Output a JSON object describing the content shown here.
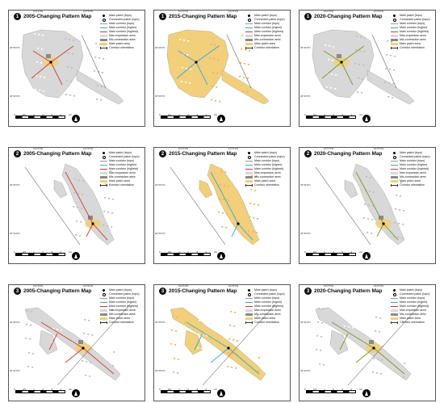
{
  "legend": [
    {
      "key": "main_patch",
      "label": "Main patch (topo)",
      "symbol": "dot"
    },
    {
      "key": "connected_patch",
      "label": "Connected patch (topo)",
      "symbol": "ring"
    },
    {
      "key": "main_corridor_topo",
      "label": "Main corridor (topo)",
      "symbol": "line",
      "color": "#9a9a9a"
    },
    {
      "key": "main_corridor_higher",
      "label": "Main corridor (higher)",
      "symbol": "line",
      "color": "#3aa6d6"
    },
    {
      "key": "main_corridor_highest",
      "label": "Main corridor (highest)",
      "symbol": "line",
      "color": "#d23b2d"
    },
    {
      "key": "max_expansion",
      "label": "Max-expansion area",
      "symbol": "box",
      "color": "#d8d8d8"
    },
    {
      "key": "mix_contraction",
      "label": "Mix-contraction area",
      "symbol": "box",
      "color": "#8a8a8a"
    },
    {
      "key": "main_patch_area",
      "label": "Main patch area",
      "symbol": "box",
      "color": "#f2cf7a"
    },
    {
      "key": "corridor_orientation",
      "label": "Corridor orientation",
      "symbol": "orient"
    }
  ],
  "scale": {
    "labels": [
      "0",
      "0.5",
      "1",
      "2",
      "3",
      "4"
    ],
    "unit": "km"
  },
  "ticks": {
    "top": [
      "104°3'0\"E",
      "104°6'0\"E"
    ],
    "left": [
      "30°36'0\"N",
      "30°33'0\"N"
    ]
  },
  "colors": {
    "expansion": "#d8d8d8",
    "contraction": "#8a8a8a",
    "patch": "#f2cf7a",
    "y2005": "#d23b2d",
    "y2015": "#3aa6d6",
    "y2020": "#7a9a1f"
  },
  "panels": [
    {
      "id": "1-2005",
      "badge": "1",
      "title": "2005-Changing Pattern Map",
      "region": 1,
      "year": "2005"
    },
    {
      "id": "1-2015",
      "badge": "1",
      "title": "2015-Changing Pattern Map",
      "region": 1,
      "year": "2015"
    },
    {
      "id": "1-2020",
      "badge": "1",
      "title": "2020-Changing Pattern Map",
      "region": 1,
      "year": "2020"
    },
    {
      "id": "2-2005",
      "badge": "2",
      "title": "2005-Changing Pattern Map",
      "region": 2,
      "year": "2005"
    },
    {
      "id": "2-2015",
      "badge": "2",
      "title": "2015-Changing Pattern Map",
      "region": 2,
      "year": "2015"
    },
    {
      "id": "2-2020",
      "badge": "2",
      "title": "2020-Changing Pattern Map",
      "region": 2,
      "year": "2020"
    },
    {
      "id": "3-2005",
      "badge": "3",
      "title": "2005-Changing Pattern Map",
      "region": 3,
      "year": "2005"
    },
    {
      "id": "3-2015",
      "badge": "3",
      "title": "2015-Changing Pattern Map",
      "region": 3,
      "year": "2015"
    },
    {
      "id": "3-2020",
      "badge": "3",
      "title": "2020-Changing Pattern Map",
      "region": 3,
      "year": "2020"
    }
  ]
}
